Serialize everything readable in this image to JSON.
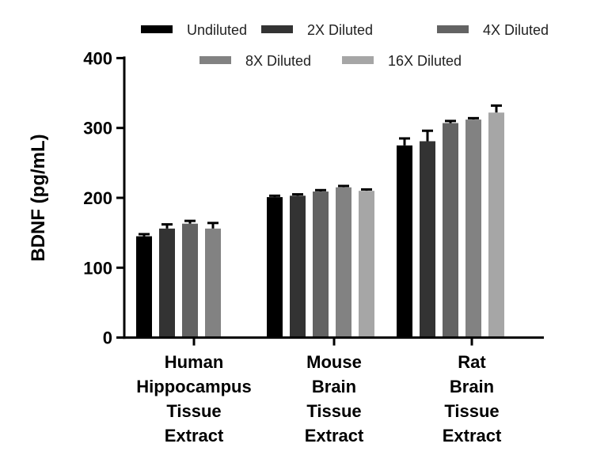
{
  "chart_data": {
    "type": "bar",
    "title": "",
    "xlabel": "",
    "ylabel": "BDNF (pg/mL)",
    "ylim": [
      0,
      400
    ],
    "yticks": [
      "0",
      "100",
      "200",
      "300",
      "400"
    ],
    "grid": false,
    "legend_position": "top",
    "categories": [
      [
        "Human",
        "Hippocampus",
        "Tissue",
        "Extract"
      ],
      [
        "Mouse",
        "Brain",
        "Tissue",
        "Extract"
      ],
      [
        "Rat",
        "Brain",
        "Tissue",
        "Extract"
      ]
    ],
    "series": [
      {
        "name": "Undiluted",
        "color": "#000000",
        "values": [
          145,
          201,
          275
        ],
        "errors": [
          3,
          2,
          10
        ]
      },
      {
        "name": "2X Diluted",
        "color": "#333333",
        "values": [
          156,
          203,
          281
        ],
        "errors": [
          6,
          2,
          15
        ]
      },
      {
        "name": "4X Diluted",
        "color": "#636363",
        "values": [
          163,
          209,
          307
        ],
        "errors": [
          4,
          2,
          3
        ]
      },
      {
        "name": "8X Diluted",
        "color": "#828282",
        "values": [
          156,
          215,
          312
        ],
        "errors": [
          8,
          2,
          2
        ]
      },
      {
        "name": "16X Diluted",
        "color": "#a6a6a6",
        "values": [
          null,
          210,
          322
        ],
        "errors": [
          null,
          2,
          10
        ]
      }
    ]
  }
}
